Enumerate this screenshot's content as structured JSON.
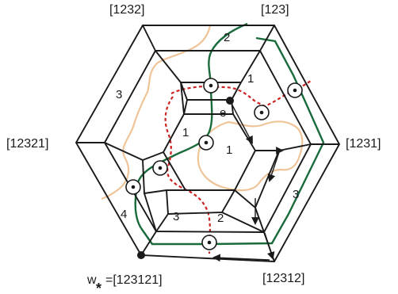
{
  "vertex_labels": {
    "top_left": "[1232]",
    "top_right": "[123]",
    "left": "[12321]",
    "right": "[1231]",
    "bottom_left_prefix": "w",
    "bottom_left_star": "*",
    "bottom_left_suffix": "=[123121]",
    "bottom_right": "[12312]"
  },
  "region_labels": {
    "r2_top": "2",
    "r1_top": "1",
    "r3_left": "3",
    "r1_center_left": "1",
    "r1_center_right": "1",
    "r3_right": "3",
    "r4_left": "4",
    "r3_bottom": "3",
    "r2_bottom": "2"
  },
  "edge_label": "e",
  "colors": {
    "edges": "#1a1a1a",
    "tan_curve": "#eec498",
    "green_curve": "#1a6b3c",
    "red_dashed_curve": "#cc2222"
  }
}
